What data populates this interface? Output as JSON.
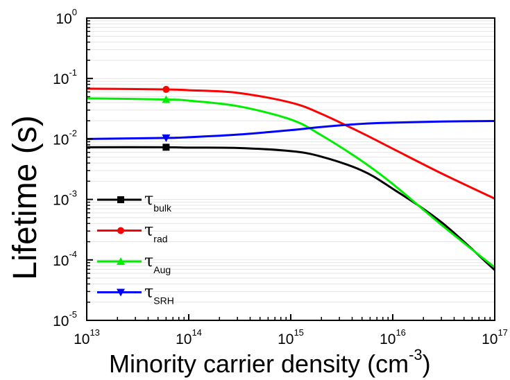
{
  "chart_data": {
    "type": "line",
    "xlabel_main": "Minority carrier density (cm",
    "xlabel_exp": "-3",
    "xlabel_close": ")",
    "ylabel": "Lifetime (s)",
    "x_scale": "log",
    "y_scale": "log",
    "xlim": [
      10000000000000.0,
      1e+17
    ],
    "ylim": [
      1e-05,
      1
    ],
    "grid": "horizontal minor gridlines",
    "legend_position": "left",
    "x_ticks": [
      {
        "base": "10",
        "exp": "13"
      },
      {
        "base": "10",
        "exp": "14"
      },
      {
        "base": "10",
        "exp": "15"
      },
      {
        "base": "10",
        "exp": "16"
      },
      {
        "base": "10",
        "exp": "17"
      }
    ],
    "y_ticks": [
      {
        "base": "10",
        "exp": "0"
      },
      {
        "base": "10",
        "exp": "-1"
      },
      {
        "base": "10",
        "exp": "-2"
      },
      {
        "base": "10",
        "exp": "-3"
      },
      {
        "base": "10",
        "exp": "-4"
      },
      {
        "base": "10",
        "exp": "-5"
      }
    ],
    "x": [
      10000000000000.0,
      60000000000000.0,
      100000000000000.0,
      300000000000000.0,
      1000000000000000.0,
      2000000000000000.0,
      5000000000000000.0,
      1e+16,
      3e+16,
      1e+17
    ],
    "series": [
      {
        "symbol": "τ",
        "sub": "bulk",
        "color": "#000000",
        "marker": "square",
        "values": [
          0.0073,
          0.0073,
          0.0072,
          0.0071,
          0.0063,
          0.0051,
          0.003,
          0.0015,
          0.00042,
          6.8e-05
        ]
      },
      {
        "symbol": "τ",
        "sub": "rad",
        "color": "#ff0000",
        "marker": "circle",
        "values": [
          0.068,
          0.066,
          0.064,
          0.058,
          0.04,
          0.026,
          0.0125,
          0.0069,
          0.0027,
          0.00103
        ]
      },
      {
        "symbol": "τ",
        "sub": "Aug",
        "color": "#00ee00",
        "marker": "triangle-up",
        "values": [
          0.047,
          0.045,
          0.043,
          0.035,
          0.021,
          0.0115,
          0.0043,
          0.0018,
          0.00038,
          7.5e-05
        ]
      },
      {
        "symbol": "τ",
        "sub": "SRH",
        "color": "#0000ff",
        "marker": "triangle-down",
        "values": [
          0.01,
          0.0104,
          0.0107,
          0.0118,
          0.014,
          0.0158,
          0.0178,
          0.0186,
          0.0194,
          0.0198
        ]
      }
    ]
  }
}
